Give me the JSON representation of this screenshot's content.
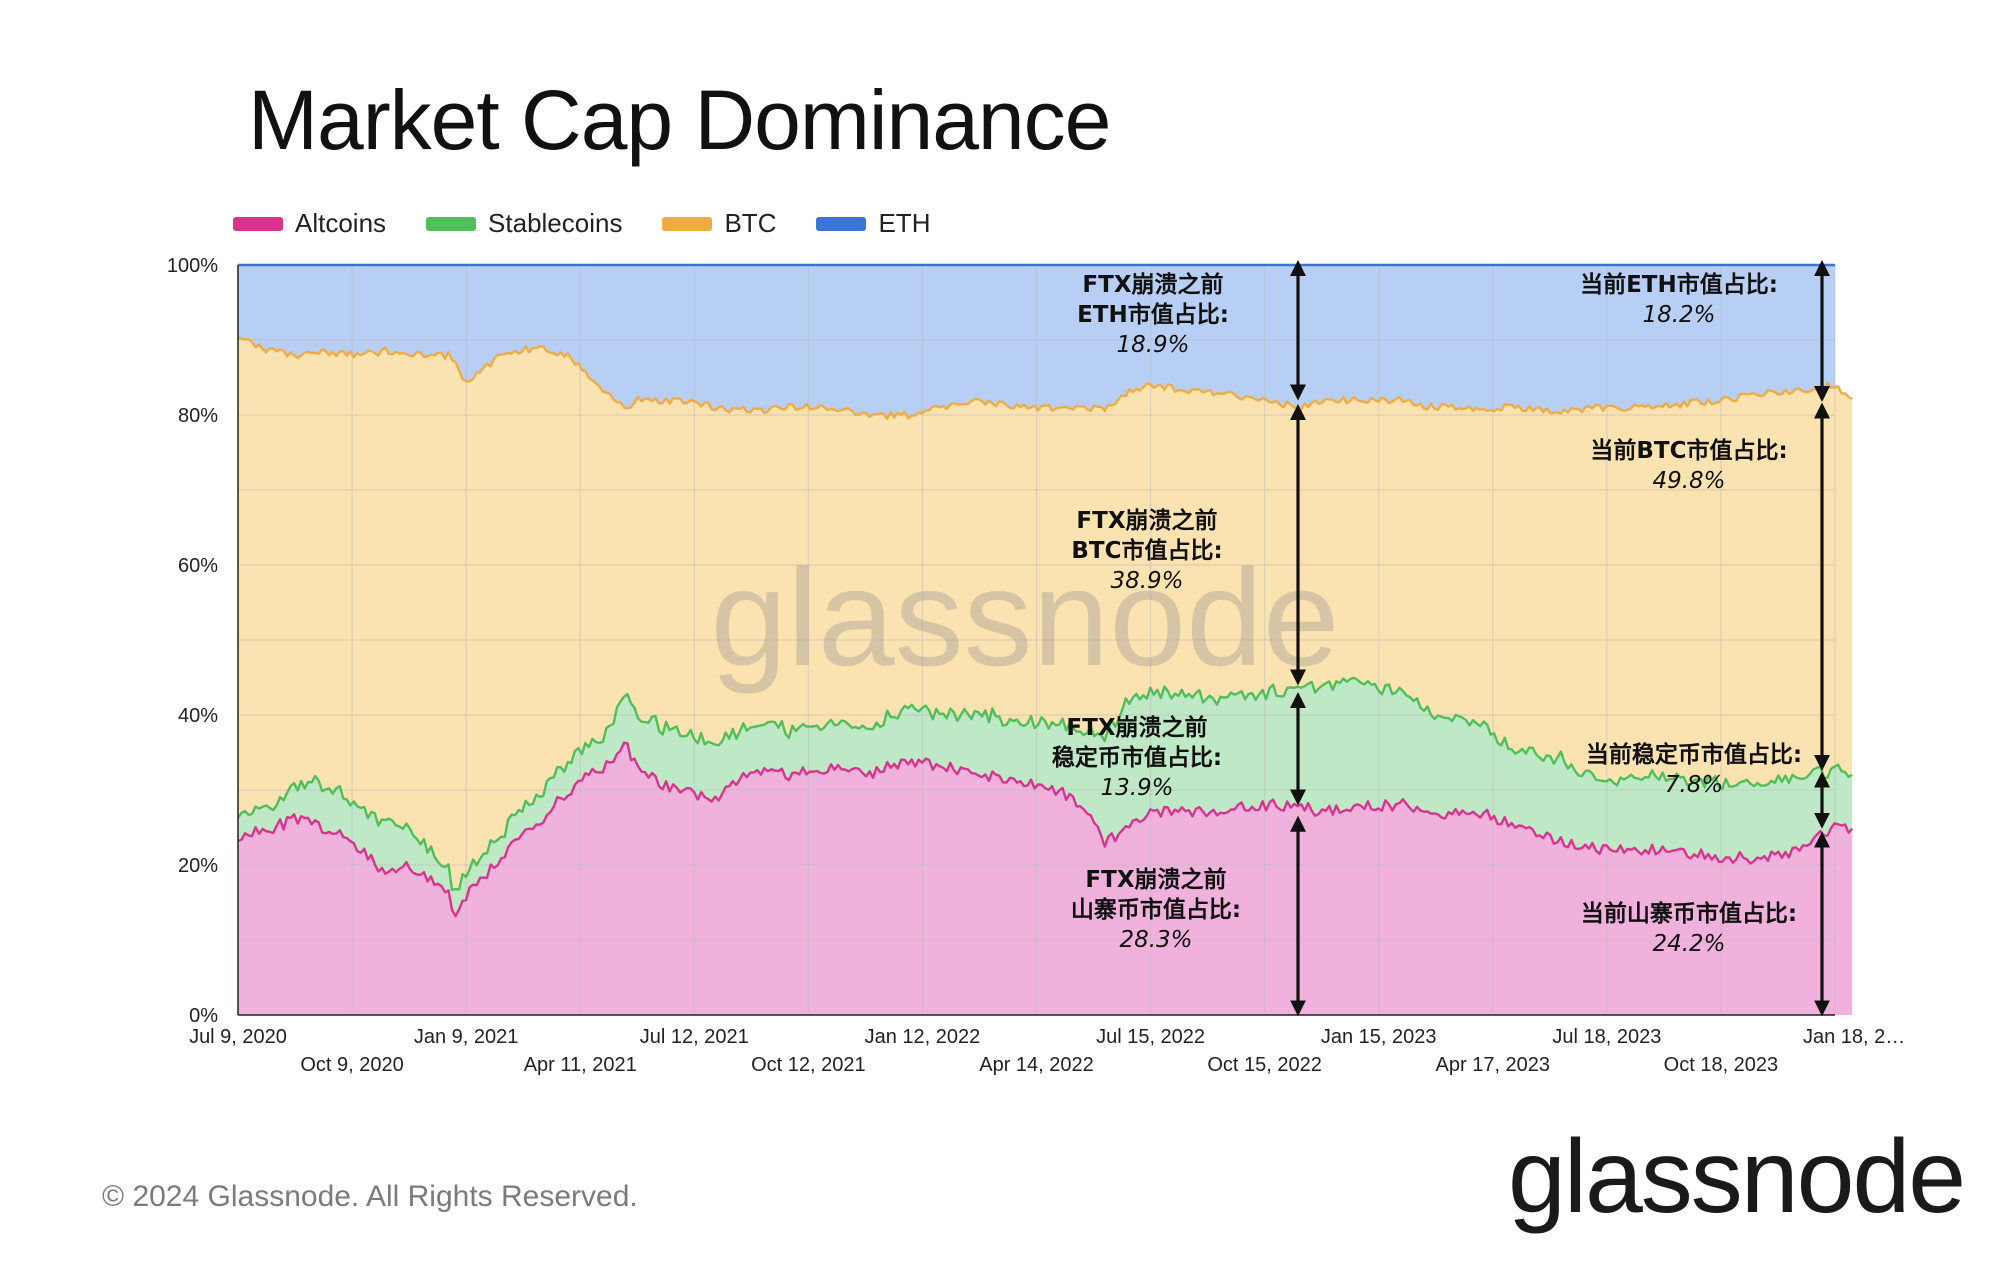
{
  "title": "Market Cap Dominance",
  "legend": [
    {
      "label": "Altcoins",
      "color": "#d9338f"
    },
    {
      "label": "Stablecoins",
      "color": "#4fbf5a"
    },
    {
      "label": "BTC",
      "color": "#f0ac43"
    },
    {
      "label": "ETH",
      "color": "#3b73d6"
    }
  ],
  "footer": "© 2024 Glassnode. All Rights Reserved.",
  "brand": "glassnode",
  "watermark": "glassnode",
  "chart_data": {
    "type": "area",
    "stacked": true,
    "y_ticks": [
      "0%",
      "20%",
      "40%",
      "60%",
      "80%",
      "100%"
    ],
    "ylim": [
      0,
      100
    ],
    "x_ticks": [
      {
        "label": "Jul 9, 2020",
        "row": 0
      },
      {
        "label": "Oct 9, 2020",
        "row": 1
      },
      {
        "label": "Jan 9, 2021",
        "row": 0
      },
      {
        "label": "Apr 11, 2021",
        "row": 1
      },
      {
        "label": "Jul 12, 2021",
        "row": 0
      },
      {
        "label": "Oct 12, 2021",
        "row": 1
      },
      {
        "label": "Jan 12, 2022",
        "row": 0
      },
      {
        "label": "Apr 14, 2022",
        "row": 1
      },
      {
        "label": "Jul 15, 2022",
        "row": 0
      },
      {
        "label": "Oct 15, 2022",
        "row": 1
      },
      {
        "label": "Jan 15, 2023",
        "row": 0
      },
      {
        "label": "Apr 17, 2023",
        "row": 1
      },
      {
        "label": "Jul 18, 2023",
        "row": 0
      },
      {
        "label": "Oct 18, 2023",
        "row": 1
      },
      {
        "label": "Jan 18, 2…",
        "row": 0
      }
    ],
    "series_cumulative": [
      {
        "name": "Altcoins",
        "fill": "#f0b2dc",
        "line": "#d9338f",
        "values": [
          [
            0,
            24
          ],
          [
            0.3,
            25
          ],
          [
            0.5,
            26
          ],
          [
            0.75,
            25
          ],
          [
            1,
            23
          ],
          [
            1.3,
            19
          ],
          [
            1.5,
            20
          ],
          [
            1.85,
            16
          ],
          [
            1.9,
            13
          ],
          [
            2.0,
            16
          ],
          [
            2.3,
            21
          ],
          [
            2.6,
            25
          ],
          [
            2.9,
            30
          ],
          [
            3.2,
            33
          ],
          [
            3.4,
            36
          ],
          [
            3.5,
            33
          ],
          [
            3.8,
            30
          ],
          [
            4.2,
            29
          ],
          [
            4.5,
            33
          ],
          [
            4.8,
            32
          ],
          [
            5.2,
            33
          ],
          [
            5.5,
            32
          ],
          [
            5.9,
            34
          ],
          [
            6.2,
            33
          ],
          [
            6.5,
            32
          ],
          [
            6.9,
            31
          ],
          [
            7.2,
            30
          ],
          [
            7.4,
            28
          ],
          [
            7.6,
            23
          ],
          [
            7.8,
            25
          ],
          [
            8.0,
            27
          ],
          [
            8.5,
            27
          ],
          [
            9.0,
            28
          ],
          [
            9.3,
            28
          ],
          [
            9.5,
            27
          ],
          [
            9.8,
            28
          ],
          [
            10.2,
            28
          ],
          [
            10.5,
            27
          ],
          [
            10.9,
            27
          ],
          [
            11.2,
            25
          ],
          [
            11.6,
            23
          ],
          [
            12.0,
            22
          ],
          [
            12.4,
            22
          ],
          [
            13.0,
            21
          ],
          [
            13.5,
            21
          ],
          [
            13.8,
            23
          ],
          [
            14.0,
            25.5
          ],
          [
            14.15,
            24.2
          ]
        ]
      },
      {
        "name": "Stablecoins",
        "fill": "#bfe8c6",
        "line": "#4fbf5a",
        "values": [
          [
            0,
            27
          ],
          [
            0.3,
            28
          ],
          [
            0.5,
            30
          ],
          [
            0.75,
            31
          ],
          [
            1,
            28
          ],
          [
            1.3,
            26
          ],
          [
            1.5,
            25
          ],
          [
            1.85,
            19
          ],
          [
            1.9,
            16
          ],
          [
            2.0,
            19
          ],
          [
            2.3,
            24
          ],
          [
            2.6,
            29
          ],
          [
            2.9,
            34
          ],
          [
            3.2,
            37
          ],
          [
            3.4,
            43
          ],
          [
            3.5,
            40
          ],
          [
            3.8,
            38
          ],
          [
            4.2,
            36
          ],
          [
            4.5,
            39
          ],
          [
            4.8,
            38
          ],
          [
            5.2,
            39
          ],
          [
            5.5,
            38
          ],
          [
            5.9,
            41
          ],
          [
            6.2,
            40
          ],
          [
            6.5,
            40
          ],
          [
            6.9,
            39
          ],
          [
            7.2,
            39
          ],
          [
            7.4,
            38
          ],
          [
            7.6,
            37
          ],
          [
            7.8,
            42
          ],
          [
            8.0,
            43
          ],
          [
            8.5,
            42
          ],
          [
            9.0,
            43
          ],
          [
            9.3,
            44
          ],
          [
            9.5,
            44
          ],
          [
            9.8,
            45
          ],
          [
            10.2,
            43
          ],
          [
            10.5,
            40
          ],
          [
            10.9,
            39
          ],
          [
            11.2,
            35
          ],
          [
            11.6,
            34
          ],
          [
            12.0,
            31
          ],
          [
            12.4,
            32
          ],
          [
            13.0,
            31
          ],
          [
            13.5,
            31
          ],
          [
            13.8,
            32
          ],
          [
            14.0,
            33
          ],
          [
            14.15,
            32
          ]
        ]
      },
      {
        "name": "BTC",
        "fill": "#fbe2b1",
        "line": "#f0ac43",
        "values": [
          [
            0,
            90.5
          ],
          [
            0.3,
            88.5
          ],
          [
            0.5,
            88
          ],
          [
            0.75,
            88.5
          ],
          [
            1,
            88
          ],
          [
            1.3,
            88.5
          ],
          [
            1.5,
            88
          ],
          [
            1.85,
            88
          ],
          [
            1.9,
            87
          ],
          [
            2.0,
            84
          ],
          [
            2.3,
            88
          ],
          [
            2.6,
            89
          ],
          [
            2.9,
            88
          ],
          [
            3.2,
            83
          ],
          [
            3.4,
            81
          ],
          [
            3.5,
            82
          ],
          [
            3.8,
            82
          ],
          [
            4.2,
            81
          ],
          [
            4.5,
            80.5
          ],
          [
            4.8,
            81
          ],
          [
            5.2,
            81
          ],
          [
            5.5,
            80
          ],
          [
            5.9,
            80
          ],
          [
            6.2,
            81
          ],
          [
            6.5,
            82
          ],
          [
            6.9,
            81
          ],
          [
            7.2,
            81
          ],
          [
            7.4,
            81
          ],
          [
            7.6,
            81
          ],
          [
            7.8,
            83
          ],
          [
            8.0,
            84
          ],
          [
            8.5,
            83
          ],
          [
            9.0,
            82
          ],
          [
            9.3,
            81
          ],
          [
            9.5,
            82
          ],
          [
            9.8,
            82
          ],
          [
            10.2,
            82
          ],
          [
            10.5,
            81
          ],
          [
            10.9,
            81
          ],
          [
            11.2,
            81
          ],
          [
            11.6,
            80.5
          ],
          [
            12.0,
            81
          ],
          [
            12.4,
            81
          ],
          [
            13.0,
            82
          ],
          [
            13.5,
            83
          ],
          [
            13.8,
            83.5
          ],
          [
            14.0,
            84
          ],
          [
            14.15,
            81.8
          ]
        ]
      },
      {
        "name": "ETH",
        "fill": "#b7cff5",
        "line": "#3b73d6",
        "values": [
          [
            0,
            100
          ],
          [
            14.15,
            100
          ]
        ]
      }
    ],
    "annotations": [
      {
        "lines": [
          "FTX崩溃之前",
          "ETH市值占比:",
          "18.9%"
        ]
      },
      {
        "lines": [
          "FTX崩溃之前",
          "BTC市值占比:",
          "38.9%"
        ]
      },
      {
        "lines": [
          "FTX崩溃之前",
          "稳定币市值占比:",
          "13.9%"
        ]
      },
      {
        "lines": [
          "FTX崩溃之前",
          "山寨币市值占比:",
          "28.3%"
        ]
      },
      {
        "lines": [
          "当前ETH市值占比:",
          "18.2%"
        ]
      },
      {
        "lines": [
          "当前BTC市值占比:",
          "49.8%"
        ]
      },
      {
        "lines": [
          "当前稳定币市值占比:",
          "7.8%"
        ]
      },
      {
        "lines": [
          "当前山寨币市值占比:",
          "24.2%"
        ]
      }
    ]
  }
}
